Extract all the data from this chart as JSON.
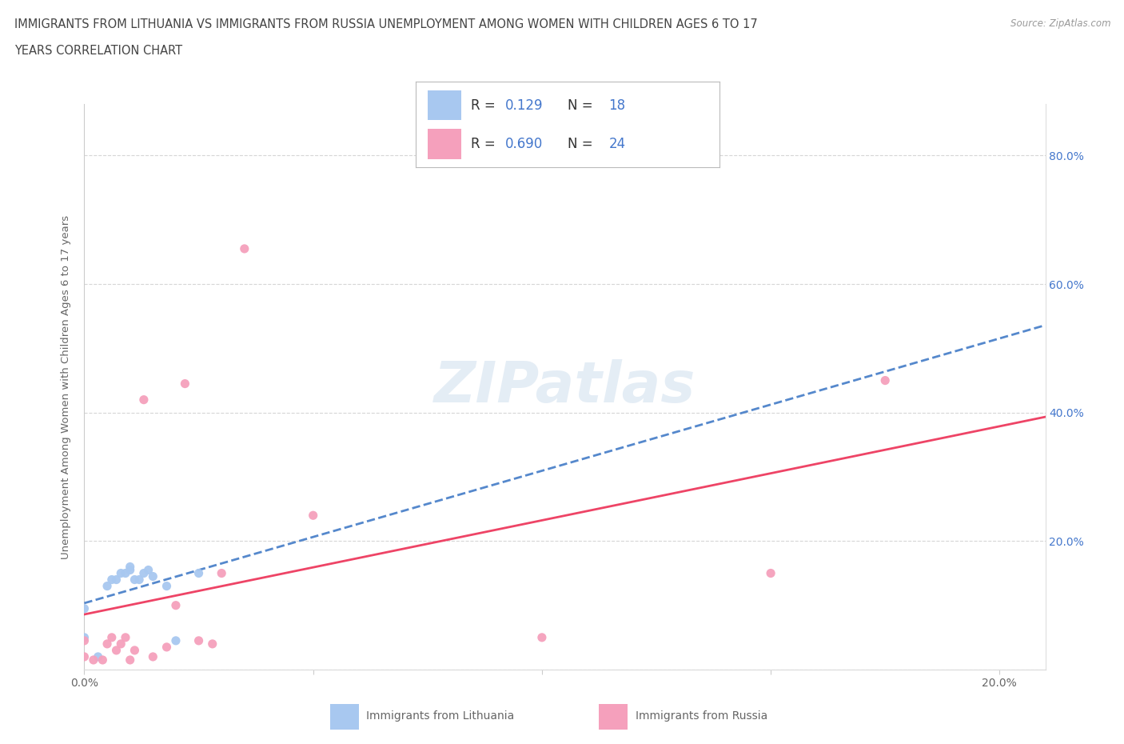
{
  "title_line1": "IMMIGRANTS FROM LITHUANIA VS IMMIGRANTS FROM RUSSIA UNEMPLOYMENT AMONG WOMEN WITH CHILDREN AGES 6 TO 17",
  "title_line2": "YEARS CORRELATION CHART",
  "source": "Source: ZipAtlas.com",
  "ylabel": "Unemployment Among Women with Children Ages 6 to 17 years",
  "xlim": [
    0.0,
    0.21
  ],
  "ylim": [
    0.0,
    0.88
  ],
  "yticks": [
    0.0,
    0.2,
    0.4,
    0.6,
    0.8
  ],
  "ytick_labels": [
    "",
    "20.0%",
    "40.0%",
    "60.0%",
    "80.0%"
  ],
  "xticks": [
    0.0,
    0.05,
    0.1,
    0.15,
    0.2
  ],
  "xtick_labels": [
    "0.0%",
    "",
    "",
    "",
    "20.0%"
  ],
  "color_lithuania": "#a8c8f0",
  "color_russia": "#f5a0bc",
  "trendline_color_lithuania": "#5588cc",
  "trendline_color_russia": "#ee4466",
  "scatter_lithuania_x": [
    0.0,
    0.0,
    0.003,
    0.005,
    0.006,
    0.007,
    0.008,
    0.009,
    0.01,
    0.01,
    0.011,
    0.012,
    0.013,
    0.014,
    0.015,
    0.018,
    0.02,
    0.025
  ],
  "scatter_lithuania_y": [
    0.05,
    0.095,
    0.02,
    0.13,
    0.14,
    0.14,
    0.15,
    0.15,
    0.155,
    0.16,
    0.14,
    0.14,
    0.15,
    0.155,
    0.145,
    0.13,
    0.045,
    0.15
  ],
  "scatter_russia_x": [
    0.0,
    0.0,
    0.002,
    0.004,
    0.005,
    0.006,
    0.007,
    0.008,
    0.009,
    0.01,
    0.011,
    0.013,
    0.015,
    0.018,
    0.02,
    0.022,
    0.025,
    0.028,
    0.03,
    0.035,
    0.05,
    0.1,
    0.15,
    0.175
  ],
  "scatter_russia_y": [
    0.02,
    0.045,
    0.015,
    0.015,
    0.04,
    0.05,
    0.03,
    0.04,
    0.05,
    0.015,
    0.03,
    0.42,
    0.02,
    0.035,
    0.1,
    0.445,
    0.045,
    0.04,
    0.15,
    0.655,
    0.24,
    0.05,
    0.15,
    0.45
  ],
  "watermark": "ZIPatlas",
  "background_color": "#ffffff",
  "grid_color": "#cccccc",
  "blue_text_color": "#4477cc"
}
